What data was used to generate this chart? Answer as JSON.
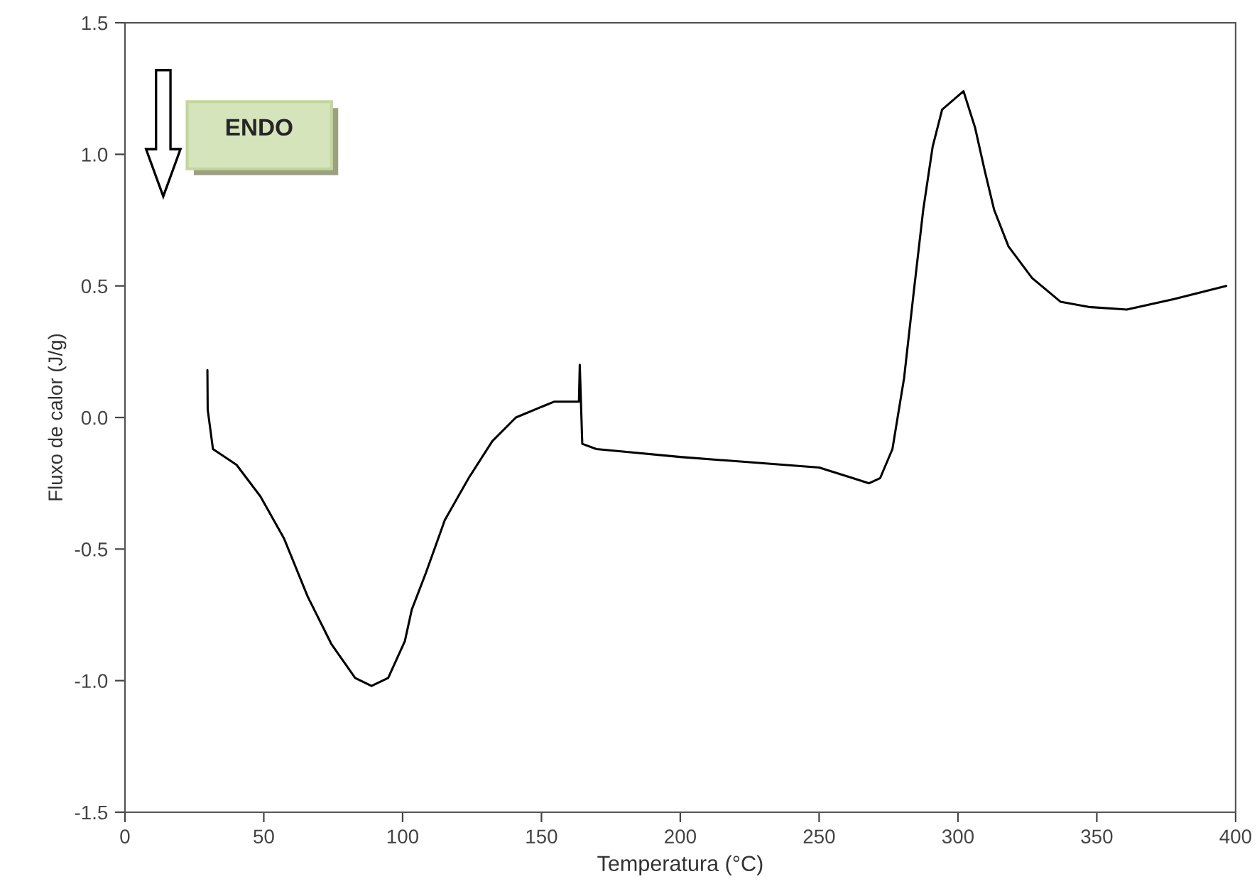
{
  "chart_data": {
    "type": "line",
    "xlabel": "Temperatura (°C)",
    "ylabel": "Fluxo de calor (J/g)",
    "xlim": [
      0,
      400
    ],
    "xticks": [
      0,
      50,
      100,
      150,
      200,
      250,
      300,
      350,
      400
    ],
    "ylim": [
      -1.5,
      1.5
    ],
    "yticks": [
      {
        "value": -1.5,
        "label": "-1.5"
      },
      {
        "value": -1.0,
        "label": "-1.0"
      },
      {
        "value": -0.5,
        "label": "-0.5"
      },
      {
        "value": 0.0,
        "label": "0.0"
      },
      {
        "value": 0.5,
        "label": "0.5"
      },
      {
        "value": 1.0,
        "label": "1.0"
      },
      {
        "value": 1.5,
        "label": "1.5"
      }
    ],
    "grid": false,
    "legend": false,
    "marker": "none",
    "line_style": "solid",
    "annotations": [
      "ENDO"
    ],
    "series": [
      {
        "color": "#000000",
        "x": [
          29.7,
          29.8,
          31.7,
          40.2,
          48.8,
          57.3,
          65.8,
          74.3,
          82.9,
          88.8,
          94.8,
          100.8,
          103.3,
          108.4,
          115.2,
          123.8,
          132.3,
          140.8,
          154.5,
          163.5,
          163.8,
          164.7,
          169.8,
          180,
          200,
          225,
          250,
          262,
          268,
          272,
          276.4,
          280.6,
          284.0,
          287.5,
          290.9,
          294.3,
          302.0,
          306.2,
          309.6,
          313.0,
          318.2,
          326.7,
          336.9,
          347.1,
          360.8,
          377.8,
          396.6
        ],
        "values": [
          0.18,
          0.03,
          -0.12,
          -0.18,
          -0.3,
          -0.46,
          -0.68,
          -0.86,
          -0.99,
          -1.02,
          -0.99,
          -0.85,
          -0.73,
          -0.59,
          -0.39,
          -0.23,
          -0.09,
          0.0,
          0.06,
          0.06,
          0.2,
          -0.1,
          -0.12,
          -0.13,
          -0.15,
          -0.17,
          -0.19,
          -0.23,
          -0.25,
          -0.23,
          -0.12,
          0.15,
          0.47,
          0.79,
          1.03,
          1.17,
          1.24,
          1.1,
          0.94,
          0.79,
          0.65,
          0.53,
          0.44,
          0.42,
          0.41,
          0.45,
          0.5
        ]
      }
    ]
  }
}
